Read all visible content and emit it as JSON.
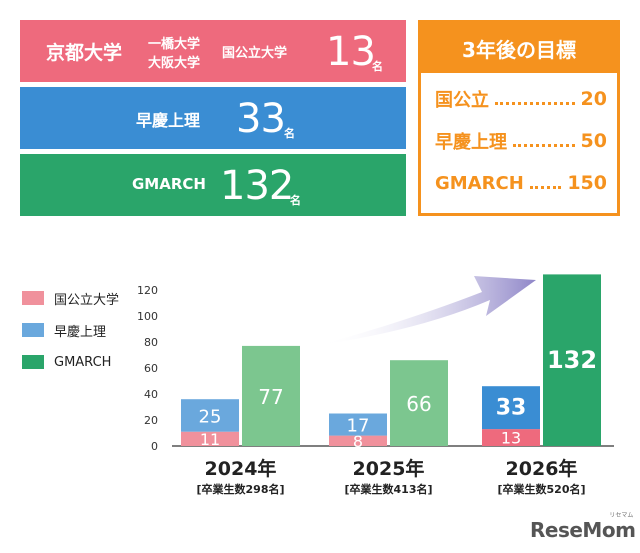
{
  "results": {
    "kokkoritsu": {
      "label": "京都大学",
      "sub1": "一橋大学",
      "sub2": "大阪大学",
      "sub3": "国公立大学",
      "value": "13",
      "unit": "名"
    },
    "soukei": {
      "label": "早慶上理",
      "value": "33",
      "unit": "名"
    },
    "gmarch": {
      "label": "GMARCH",
      "value": "132",
      "unit": "名"
    }
  },
  "goal": {
    "title": "3年後の目標",
    "rows": [
      {
        "label": "国公立",
        "value": "20"
      },
      {
        "label": "早慶上理",
        "value": "50"
      },
      {
        "label": "GMARCH",
        "value": "150"
      }
    ]
  },
  "colors": {
    "kokkoritsu": "#f0919c",
    "soukei": "#6aa8dd",
    "gmarch": "#7cc68f",
    "kokkoritsu_2026": "#ee6a7d",
    "soukei_2026": "#3a8dd3",
    "gmarch_2026": "#2aa56a"
  },
  "chart_data": {
    "type": "bar",
    "categories": [
      "2024年",
      "2025年",
      "2026年"
    ],
    "category_notes": [
      "[卒業生数298名]",
      "[卒業生数413名]",
      "[卒業生数520名]"
    ],
    "series": [
      {
        "name": "国公立大学",
        "values": [
          11,
          8,
          13
        ],
        "stack": "a"
      },
      {
        "name": "早慶上理",
        "values": [
          25,
          17,
          33
        ],
        "stack": "a"
      },
      {
        "name": "GMARCH",
        "values": [
          77,
          66,
          132
        ],
        "stack": "b"
      }
    ],
    "yticks": [
      0,
      20,
      40,
      60,
      80,
      100,
      120
    ],
    "ylim": [
      0,
      132
    ],
    "legend": "left",
    "grid": false
  },
  "brand": {
    "logo": "ReseMom",
    "logo_sub": "リセマム"
  }
}
